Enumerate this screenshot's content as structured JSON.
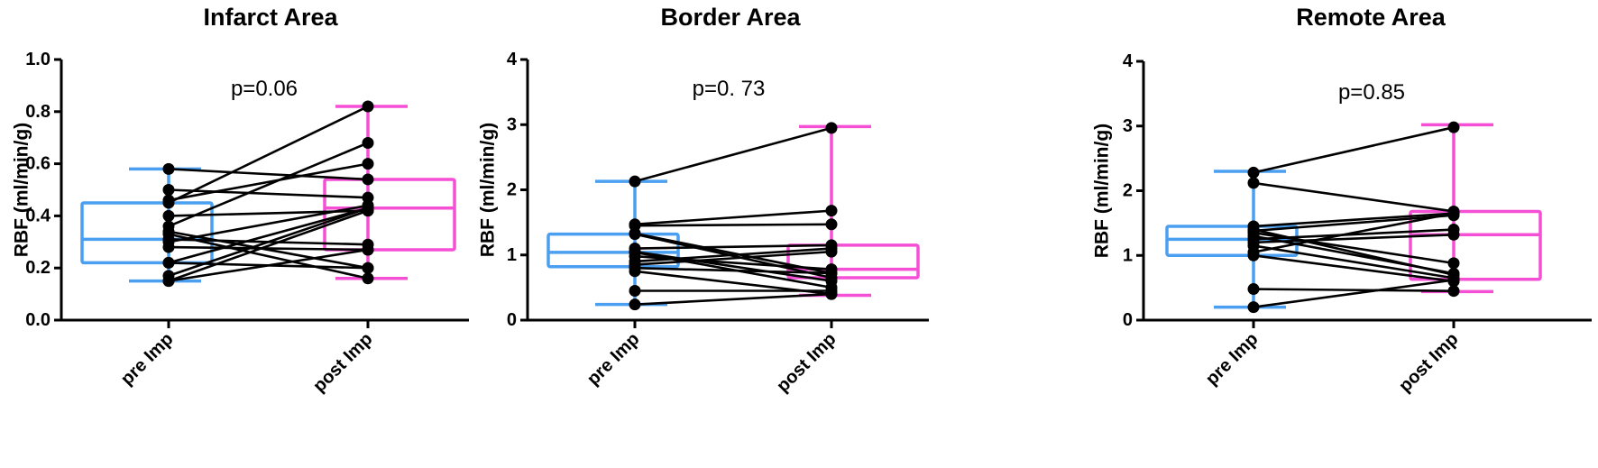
{
  "colors": {
    "pre": "#4a9ff0",
    "post": "#f54fd6",
    "points": "#000000",
    "axis": "#000000"
  },
  "chart_data": [
    {
      "type": "box-paired",
      "title": "Infarct Area",
      "annotation": "p=0.06",
      "ylabel": "RBF (ml/min/g)",
      "xlabel": "",
      "categories": [
        "pre Imp",
        "post Imp"
      ],
      "ylim": [
        0,
        1.0
      ],
      "yticks": [
        0.0,
        0.2,
        0.4,
        0.6,
        0.8,
        1.0
      ],
      "ytick_labels": [
        "0.0",
        "0.2",
        "0.4",
        "0.6",
        "0.8",
        "1.0"
      ],
      "grid": false,
      "boxes": [
        {
          "name": "pre Imp",
          "min": 0.15,
          "q1": 0.22,
          "median": 0.31,
          "q3": 0.45,
          "max": 0.58
        },
        {
          "name": "post Imp",
          "min": 0.16,
          "q1": 0.27,
          "median": 0.43,
          "q3": 0.54,
          "max": 0.82
        }
      ],
      "pairs": [
        [
          0.58,
          0.54
        ],
        [
          0.5,
          0.47
        ],
        [
          0.46,
          0.6
        ],
        [
          0.45,
          0.82
        ],
        [
          0.4,
          0.42
        ],
        [
          0.36,
          0.68
        ],
        [
          0.34,
          0.2
        ],
        [
          0.33,
          0.16
        ],
        [
          0.31,
          0.29
        ],
        [
          0.3,
          0.44
        ],
        [
          0.28,
          0.27
        ],
        [
          0.22,
          0.43
        ],
        [
          0.22,
          0.2
        ],
        [
          0.17,
          0.43
        ],
        [
          0.15,
          0.27
        ],
        [
          0.15,
          0.42
        ]
      ]
    },
    {
      "type": "box-paired",
      "title": "Border Area",
      "annotation": "p=0. 73",
      "ylabel": "RBF (ml/min/g)",
      "xlabel": "",
      "categories": [
        "pre Imp",
        "post Imp"
      ],
      "ylim": [
        0,
        4
      ],
      "yticks": [
        0,
        1,
        2,
        3,
        4
      ],
      "ytick_labels": [
        "0",
        "1",
        "2",
        "3",
        "4"
      ],
      "grid": false,
      "boxes": [
        {
          "name": "pre Imp",
          "min": 0.24,
          "q1": 0.82,
          "median": 1.04,
          "q3": 1.32,
          "max": 2.13
        },
        {
          "name": "post Imp",
          "min": 0.38,
          "q1": 0.65,
          "median": 0.78,
          "q3": 1.15,
          "max": 2.97
        }
      ],
      "pairs": [
        [
          2.13,
          2.95
        ],
        [
          1.47,
          1.68
        ],
        [
          1.45,
          1.47
        ],
        [
          1.33,
          0.72
        ],
        [
          1.32,
          0.65
        ],
        [
          1.1,
          1.15
        ],
        [
          1.05,
          0.6
        ],
        [
          1.04,
          0.5
        ],
        [
          0.98,
          0.78
        ],
        [
          0.9,
          1.1
        ],
        [
          0.85,
          1.05
        ],
        [
          0.8,
          0.72
        ],
        [
          0.75,
          0.4
        ],
        [
          0.45,
          0.45
        ],
        [
          0.24,
          0.4
        ]
      ]
    },
    {
      "type": "box-paired",
      "title": "Remote Area",
      "annotation": "p=0.85",
      "ylabel": "RBF (ml/min/g)",
      "xlabel": "",
      "categories": [
        "pre Imp",
        "post Imp"
      ],
      "ylim": [
        0,
        4
      ],
      "yticks": [
        0,
        1,
        2,
        3,
        4
      ],
      "ytick_labels": [
        "0",
        "1",
        "2",
        "3",
        "4"
      ],
      "grid": false,
      "boxes": [
        {
          "name": "pre Imp",
          "min": 0.2,
          "q1": 1.0,
          "median": 1.25,
          "q3": 1.45,
          "max": 2.3
        },
        {
          "name": "post Imp",
          "min": 0.44,
          "q1": 0.63,
          "median": 1.32,
          "q3": 1.68,
          "max": 3.02
        }
      ],
      "pairs": [
        [
          2.28,
          2.98
        ],
        [
          2.12,
          1.68
        ],
        [
          1.45,
          1.65
        ],
        [
          1.4,
          0.7
        ],
        [
          1.38,
          1.62
        ],
        [
          1.35,
          0.88
        ],
        [
          1.3,
          0.72
        ],
        [
          1.25,
          1.4
        ],
        [
          1.2,
          1.32
        ],
        [
          1.15,
          0.65
        ],
        [
          1.05,
          1.65
        ],
        [
          1.0,
          0.6
        ],
        [
          0.48,
          0.45
        ],
        [
          0.2,
          0.62
        ]
      ]
    }
  ],
  "layout": [
    {
      "axisX": 68,
      "preX": 187,
      "postX": 408,
      "yTop": 66,
      "yBottom": 355,
      "xEnd": 520,
      "titleX": 300,
      "annX": 293,
      "annY": 106,
      "ylabelX": 24
    },
    {
      "axisX": 585,
      "preX": 704,
      "postX": 922,
      "yTop": 66,
      "yBottom": 355,
      "xEnd": 1030,
      "titleX": 810,
      "annX": 808,
      "annY": 106,
      "ylabelX": 541
    },
    {
      "axisX": 1268,
      "preX": 1390,
      "postX": 1612,
      "yTop": 68,
      "yBottom": 355,
      "xEnd": 1765,
      "titleX": 1520,
      "annX": 1521,
      "annY": 110,
      "ylabelX": 1222
    }
  ]
}
